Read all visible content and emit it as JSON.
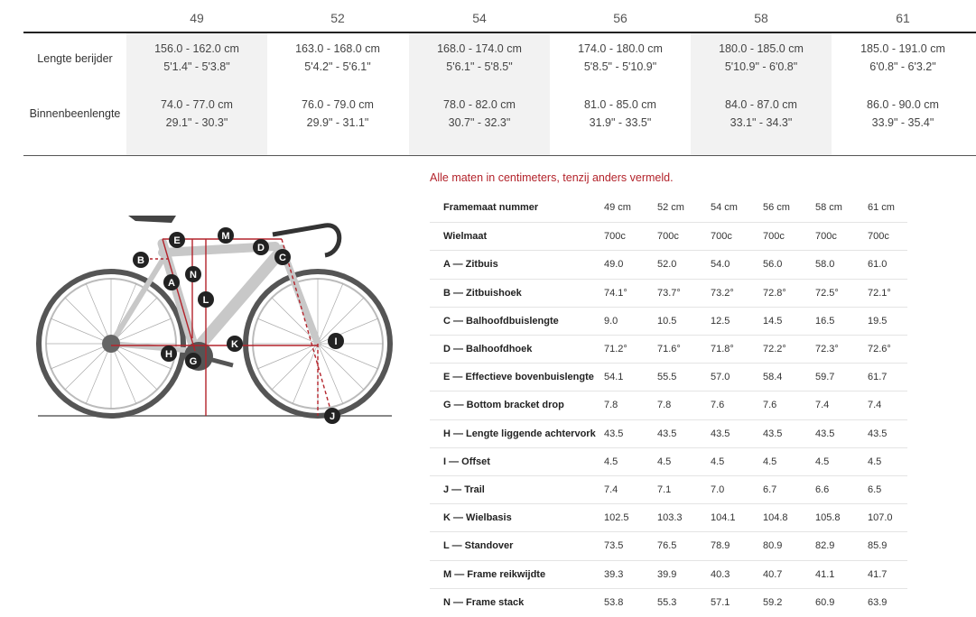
{
  "size_table": {
    "sizes": [
      "49",
      "52",
      "54",
      "56",
      "58",
      "61"
    ],
    "rows": [
      {
        "label": "Lengte berijder",
        "cells": [
          [
            "156.0 - 162.0 cm",
            "5'1.4\" - 5'3.8\""
          ],
          [
            "163.0 - 168.0 cm",
            "5'4.2\" - 5'6.1\""
          ],
          [
            "168.0 - 174.0 cm",
            "5'6.1\" - 5'8.5\""
          ],
          [
            "174.0 - 180.0 cm",
            "5'8.5\" - 5'10.9\""
          ],
          [
            "180.0 - 185.0 cm",
            "5'10.9\" - 6'0.8\""
          ],
          [
            "185.0 - 191.0 cm",
            "6'0.8\" - 6'3.2\""
          ]
        ]
      },
      {
        "label": "Binnenbeenlengte",
        "cells": [
          [
            "74.0 - 77.0 cm",
            "29.1\" - 30.3\""
          ],
          [
            "76.0 - 79.0 cm",
            "29.9\" - 31.1\""
          ],
          [
            "78.0 - 82.0 cm",
            "30.7\" - 32.3\""
          ],
          [
            "81.0 - 85.0 cm",
            "31.9\" - 33.5\""
          ],
          [
            "84.0 - 87.0 cm",
            "33.1\" - 34.3\""
          ],
          [
            "86.0 - 90.0 cm",
            "33.9\" - 35.4\""
          ]
        ]
      }
    ]
  },
  "note": "Alle maten in centimeters, tenzij anders vermeld.",
  "geometry": {
    "rows": [
      {
        "label": "Framemaat nummer",
        "values": [
          "49 cm",
          "52 cm",
          "54 cm",
          "56 cm",
          "58 cm",
          "61 cm"
        ]
      },
      {
        "label": "Wielmaat",
        "values": [
          "700c",
          "700c",
          "700c",
          "700c",
          "700c",
          "700c"
        ]
      },
      {
        "label": "A — Zitbuis",
        "values": [
          "49.0",
          "52.0",
          "54.0",
          "56.0",
          "58.0",
          "61.0"
        ]
      },
      {
        "label": "B — Zitbuishoek",
        "values": [
          "74.1°",
          "73.7°",
          "73.2°",
          "72.8°",
          "72.5°",
          "72.1°"
        ]
      },
      {
        "label": "C — Balhoofdbuislengte",
        "values": [
          "9.0",
          "10.5",
          "12.5",
          "14.5",
          "16.5",
          "19.5"
        ]
      },
      {
        "label": "D — Balhoofdhoek",
        "values": [
          "71.2°",
          "71.6°",
          "71.8°",
          "72.2°",
          "72.3°",
          "72.6°"
        ]
      },
      {
        "label": "E — Effectieve bovenbuislengte",
        "values": [
          "54.1",
          "55.5",
          "57.0",
          "58.4",
          "59.7",
          "61.7"
        ]
      },
      {
        "label": "G — Bottom bracket drop",
        "values": [
          "7.8",
          "7.8",
          "7.6",
          "7.6",
          "7.4",
          "7.4"
        ]
      },
      {
        "label": "H — Lengte liggende achtervork",
        "values": [
          "43.5",
          "43.5",
          "43.5",
          "43.5",
          "43.5",
          "43.5"
        ]
      },
      {
        "label": "I — Offset",
        "values": [
          "4.5",
          "4.5",
          "4.5",
          "4.5",
          "4.5",
          "4.5"
        ]
      },
      {
        "label": "J — Trail",
        "values": [
          "7.4",
          "7.1",
          "7.0",
          "6.7",
          "6.6",
          "6.5"
        ]
      },
      {
        "label": "K — Wielbasis",
        "values": [
          "102.5",
          "103.3",
          "104.1",
          "104.8",
          "105.8",
          "107.0"
        ]
      },
      {
        "label": "L — Standover",
        "values": [
          "73.5",
          "76.5",
          "78.9",
          "80.9",
          "82.9",
          "85.9"
        ]
      },
      {
        "label": "M — Frame reikwijdte",
        "values": [
          "39.3",
          "39.9",
          "40.3",
          "40.7",
          "41.1",
          "41.7"
        ]
      },
      {
        "label": "N — Frame stack",
        "values": [
          "53.8",
          "55.3",
          "57.1",
          "59.2",
          "60.9",
          "63.9"
        ]
      }
    ]
  },
  "diagram_markers": [
    "A",
    "B",
    "C",
    "D",
    "E",
    "G",
    "H",
    "I",
    "J",
    "K",
    "L",
    "M",
    "N"
  ],
  "colors": {
    "accent_red": "#b3232b",
    "shade": "#f2f2f2"
  }
}
